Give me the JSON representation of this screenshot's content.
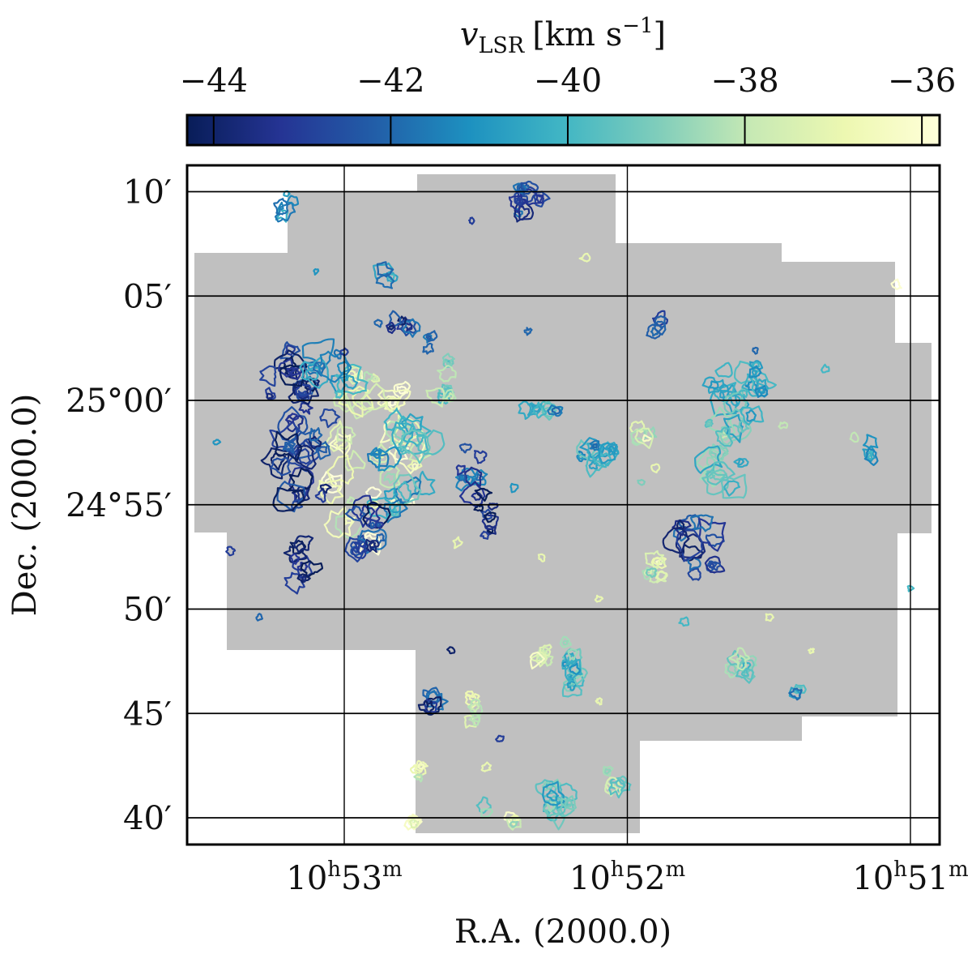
{
  "chart_data": {
    "type": "contour_map",
    "colorbar": {
      "label_var": "v",
      "label_sub": "LSR",
      "label_unit": "[km s",
      "label_unit_exp": "−1",
      "label_unit_close": "]",
      "min": -44.3,
      "max": -35.8,
      "ticks": [
        -44,
        -42,
        -40,
        -38,
        -36
      ],
      "tick_labels": [
        "−44",
        "−42",
        "−40",
        "−38",
        "−36"
      ],
      "colormap": [
        "#081d58",
        "#253494",
        "#225ea8",
        "#1d91c0",
        "#41b6c4",
        "#7fcdbb",
        "#c7e9b4",
        "#edf8b1",
        "#ffffd9"
      ]
    },
    "xaxis": {
      "label": "R.A. (2000.0)",
      "ticks": [
        {
          "h": "10",
          "m": "53",
          "value_min": 53.0
        },
        {
          "h": "10",
          "m": "52",
          "value_min": 52.0
        },
        {
          "h": "10",
          "m": "51",
          "value_min": 51.0
        }
      ],
      "range_min": [
        53.55,
        50.9
      ]
    },
    "yaxis": {
      "label": "Dec. (2000.0)",
      "ticks": [
        {
          "label": "10′",
          "offset_arcmin": 10
        },
        {
          "label": "05′",
          "offset_arcmin": 5
        },
        {
          "label": "25°00′",
          "offset_arcmin": 0
        },
        {
          "label": "24°55′",
          "offset_arcmin": -5
        },
        {
          "label": "50′",
          "offset_arcmin": -10
        },
        {
          "label": "45′",
          "offset_arcmin": -15
        },
        {
          "label": "40′",
          "offset_arcmin": -20
        }
      ],
      "range_arcmin": [
        -21.3,
        11.3
      ]
    },
    "coverage_color": "#c0c0c0",
    "grid": true,
    "clumps": [
      {
        "ra": 52.9,
        "dec": -2.5,
        "v": -37.0,
        "rx": 2.5,
        "ry": 4.5,
        "n": 40
      },
      {
        "ra": 53.15,
        "dec": -2.0,
        "v": -43.2,
        "rx": 1.6,
        "ry": 3.2,
        "n": 26
      },
      {
        "ra": 52.8,
        "dec": -3.2,
        "v": -40.5,
        "rx": 1.6,
        "ry": 2.5,
        "n": 18
      },
      {
        "ra": 53.2,
        "dec": 0.6,
        "v": -43.5,
        "rx": 1.0,
        "ry": 1.8,
        "n": 12
      },
      {
        "ra": 53.05,
        "dec": 1.3,
        "v": -40.8,
        "rx": 1.1,
        "ry": 1.2,
        "n": 10
      },
      {
        "ra": 52.95,
        "dec": -6.2,
        "v": -43.0,
        "rx": 1.2,
        "ry": 1.2,
        "n": 12
      },
      {
        "ra": 53.15,
        "dec": -8.2,
        "v": -43.6,
        "rx": 0.5,
        "ry": 1.5,
        "n": 8
      },
      {
        "ra": 53.2,
        "dec": 9.2,
        "v": -41.0,
        "rx": 0.4,
        "ry": 0.8,
        "n": 5
      },
      {
        "ra": 52.85,
        "dec": 6.0,
        "v": -41.5,
        "rx": 0.4,
        "ry": 0.5,
        "n": 4
      },
      {
        "ra": 52.8,
        "dec": 3.4,
        "v": -42.8,
        "rx": 0.5,
        "ry": 0.6,
        "n": 6
      },
      {
        "ra": 52.7,
        "dec": 2.8,
        "v": -42.0,
        "rx": 0.3,
        "ry": 0.5,
        "n": 3
      },
      {
        "ra": 52.65,
        "dec": 1.0,
        "v": -39.0,
        "rx": 0.5,
        "ry": 1.2,
        "n": 8
      },
      {
        "ra": 52.55,
        "dec": -3.5,
        "v": -42.5,
        "rx": 0.6,
        "ry": 1.6,
        "n": 10
      },
      {
        "ra": 52.5,
        "dec": -5.5,
        "v": -44.0,
        "rx": 0.4,
        "ry": 1.2,
        "n": 8
      },
      {
        "ra": 52.35,
        "dec": 9.5,
        "v": -42.5,
        "rx": 0.6,
        "ry": 1.2,
        "n": 10
      },
      {
        "ra": 52.3,
        "dec": -0.4,
        "v": -40.5,
        "rx": 0.9,
        "ry": 0.3,
        "n": 8
      },
      {
        "ra": 52.1,
        "dec": -2.6,
        "v": -40.5,
        "rx": 1.0,
        "ry": 0.6,
        "n": 10
      },
      {
        "ra": 51.95,
        "dec": -1.6,
        "v": -37.5,
        "rx": 0.4,
        "ry": 0.6,
        "n": 6
      },
      {
        "ra": 51.9,
        "dec": 3.7,
        "v": -43.0,
        "rx": 0.3,
        "ry": 0.5,
        "n": 4
      },
      {
        "ra": 51.65,
        "dec": -1.5,
        "v": -39.5,
        "rx": 1.0,
        "ry": 3.2,
        "n": 22
      },
      {
        "ra": 51.55,
        "dec": 0.5,
        "v": -40.5,
        "rx": 0.6,
        "ry": 1.3,
        "n": 8
      },
      {
        "ra": 51.75,
        "dec": -7.0,
        "v": -42.8,
        "rx": 1.2,
        "ry": 1.4,
        "n": 14
      },
      {
        "ra": 51.9,
        "dec": -7.5,
        "v": -38.0,
        "rx": 0.4,
        "ry": 1.8,
        "n": 8
      },
      {
        "ra": 51.15,
        "dec": -2.3,
        "v": -41.0,
        "rx": 0.3,
        "ry": 0.4,
        "n": 4
      },
      {
        "ra": 52.2,
        "dec": -12.5,
        "v": -39.5,
        "rx": 0.5,
        "ry": 1.6,
        "n": 12
      },
      {
        "ra": 52.3,
        "dec": -12.2,
        "v": -37.0,
        "rx": 0.3,
        "ry": 0.6,
        "n": 5
      },
      {
        "ra": 51.6,
        "dec": -12.8,
        "v": -38.5,
        "rx": 0.5,
        "ry": 0.7,
        "n": 8
      },
      {
        "ra": 51.4,
        "dec": -14.2,
        "v": -41.0,
        "rx": 0.2,
        "ry": 0.4,
        "n": 3
      },
      {
        "ra": 52.7,
        "dec": -14.5,
        "v": -43.0,
        "rx": 0.4,
        "ry": 0.6,
        "n": 6
      },
      {
        "ra": 52.55,
        "dec": -14.8,
        "v": -37.0,
        "rx": 0.3,
        "ry": 0.9,
        "n": 6
      },
      {
        "ra": 52.25,
        "dec": -19.0,
        "v": -40.0,
        "rx": 0.7,
        "ry": 1.0,
        "n": 12
      },
      {
        "ra": 52.05,
        "dec": -18.2,
        "v": -38.5,
        "rx": 0.4,
        "ry": 0.7,
        "n": 6
      },
      {
        "ra": 52.4,
        "dec": -20.0,
        "v": -37.0,
        "rx": 0.2,
        "ry": 0.4,
        "n": 3
      },
      {
        "ra": 52.75,
        "dec": -20.4,
        "v": -37.0,
        "rx": 0.3,
        "ry": 0.3,
        "n": 3
      },
      {
        "ra": 52.5,
        "dec": -19.6,
        "v": -39.0,
        "rx": 0.2,
        "ry": 0.3,
        "n": 2
      },
      {
        "ra": 52.73,
        "dec": -18.0,
        "v": -37.0,
        "rx": 0.2,
        "ry": 0.6,
        "n": 3
      }
    ],
    "specks": [
      {
        "ra": 53.1,
        "dec": 6.2,
        "v": -41.0
      },
      {
        "ra": 52.55,
        "dec": 8.6,
        "v": -43.0
      },
      {
        "ra": 53.0,
        "dec": 2.3,
        "v": -43.0
      },
      {
        "ra": 52.88,
        "dec": 3.7,
        "v": -42.0
      },
      {
        "ra": 52.35,
        "dec": 3.3,
        "v": -42.0
      },
      {
        "ra": 52.15,
        "dec": 6.8,
        "v": -37.0
      },
      {
        "ra": 51.05,
        "dec": 5.5,
        "v": -36.0
      },
      {
        "ra": 51.3,
        "dec": 1.5,
        "v": -40.0
      },
      {
        "ra": 51.45,
        "dec": -1.2,
        "v": -38.0
      },
      {
        "ra": 51.2,
        "dec": -1.8,
        "v": -38.0
      },
      {
        "ra": 51.9,
        "dec": -3.2,
        "v": -37.0
      },
      {
        "ra": 51.95,
        "dec": -3.9,
        "v": -39.0
      },
      {
        "ra": 52.4,
        "dec": -4.2,
        "v": -41.0
      },
      {
        "ra": 52.3,
        "dec": -7.5,
        "v": -37.0
      },
      {
        "ra": 53.4,
        "dec": -7.2,
        "v": -43.0
      },
      {
        "ra": 52.1,
        "dec": -9.5,
        "v": -37.0
      },
      {
        "ra": 51.8,
        "dec": -10.6,
        "v": -40.0
      },
      {
        "ra": 51.5,
        "dec": -10.4,
        "v": -37.0
      },
      {
        "ra": 51.35,
        "dec": -12.0,
        "v": -37.0
      },
      {
        "ra": 51.0,
        "dec": -9.0,
        "v": -40.0
      },
      {
        "ra": 52.45,
        "dec": -16.2,
        "v": -43.0
      },
      {
        "ra": 52.5,
        "dec": -17.6,
        "v": -37.0
      },
      {
        "ra": 53.3,
        "dec": -10.4,
        "v": -42.0
      },
      {
        "ra": 52.1,
        "dec": -14.4,
        "v": -37.0
      },
      {
        "ra": 52.62,
        "dec": -12.0,
        "v": -44.0
      },
      {
        "ra": 53.45,
        "dec": -2.0,
        "v": -41.0
      },
      {
        "ra": 52.6,
        "dec": -6.8,
        "v": -37.0
      },
      {
        "ra": 51.55,
        "dec": 2.4,
        "v": -42.0
      }
    ]
  }
}
